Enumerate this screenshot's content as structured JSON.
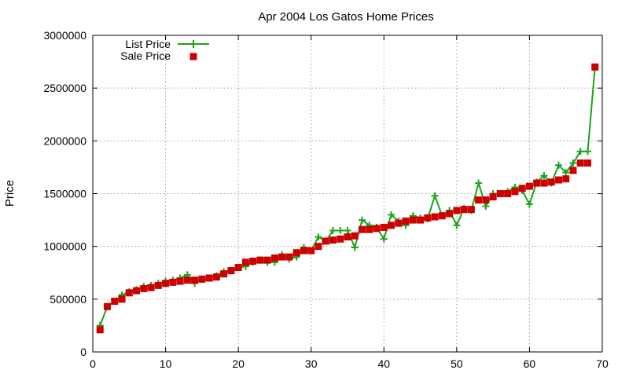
{
  "chart_data": {
    "type": "line",
    "title": "Apr 2004 Los Gatos Home Prices",
    "xlabel": "",
    "ylabel": "Price",
    "xlim": [
      0,
      70
    ],
    "ylim": [
      0,
      3000000
    ],
    "x_ticks": [
      0,
      10,
      20,
      30,
      40,
      50,
      60,
      70
    ],
    "y_ticks": [
      0,
      500000,
      1000000,
      1500000,
      2000000,
      2500000,
      3000000
    ],
    "x_tick_labels": [
      "0",
      "10",
      "20",
      "30",
      "40",
      "50",
      "60",
      "70"
    ],
    "y_tick_labels": [
      "0",
      "500000",
      "1000000",
      "1500000",
      "2000000",
      "2500000",
      "3000000"
    ],
    "grid": true,
    "legend_position": "top-left",
    "x": [
      1,
      2,
      3,
      4,
      5,
      6,
      7,
      8,
      9,
      10,
      11,
      12,
      13,
      14,
      15,
      16,
      17,
      18,
      19,
      20,
      21,
      22,
      23,
      24,
      25,
      26,
      27,
      28,
      29,
      30,
      31,
      32,
      33,
      34,
      35,
      36,
      37,
      38,
      39,
      40,
      41,
      42,
      43,
      44,
      45,
      46,
      47,
      48,
      49,
      50,
      51,
      52,
      53,
      54,
      55,
      56,
      57,
      58,
      59,
      60,
      61,
      62,
      63,
      64,
      65,
      66,
      67,
      68,
      69
    ],
    "series": [
      {
        "name": "List Price",
        "style": "linespoints",
        "marker": "plus",
        "color": "#1aa41a",
        "values": [
          250000,
          430000,
          480000,
          540000,
          570000,
          590000,
          620000,
          630000,
          650000,
          670000,
          680000,
          700000,
          730000,
          650000,
          690000,
          700000,
          720000,
          760000,
          770000,
          800000,
          810000,
          850000,
          870000,
          850000,
          850000,
          920000,
          880000,
          900000,
          990000,
          960000,
          1090000,
          1050000,
          1150000,
          1150000,
          1150000,
          990000,
          1250000,
          1200000,
          1180000,
          1070000,
          1300000,
          1240000,
          1200000,
          1290000,
          1270000,
          1260000,
          1480000,
          1290000,
          1340000,
          1200000,
          1360000,
          1340000,
          1600000,
          1380000,
          1500000,
          1500000,
          1520000,
          1560000,
          1530000,
          1400000,
          1610000,
          1670000,
          1600000,
          1770000,
          1700000,
          1790000,
          1900000,
          1900000,
          2700000
        ]
      },
      {
        "name": "Sale Price",
        "style": "points",
        "marker": "square",
        "color": "#cc0000",
        "values": [
          210000,
          430000,
          480000,
          500000,
          560000,
          580000,
          600000,
          610000,
          630000,
          650000,
          660000,
          670000,
          680000,
          680000,
          690000,
          700000,
          710000,
          740000,
          770000,
          800000,
          850000,
          860000,
          870000,
          870000,
          890000,
          900000,
          900000,
          940000,
          960000,
          960000,
          1000000,
          1050000,
          1060000,
          1070000,
          1090000,
          1100000,
          1160000,
          1160000,
          1170000,
          1180000,
          1200000,
          1220000,
          1240000,
          1250000,
          1250000,
          1270000,
          1280000,
          1290000,
          1310000,
          1340000,
          1350000,
          1350000,
          1440000,
          1440000,
          1470000,
          1500000,
          1500000,
          1520000,
          1550000,
          1570000,
          1600000,
          1600000,
          1610000,
          1630000,
          1640000,
          1720000,
          1790000,
          1790000,
          2700000
        ]
      }
    ]
  }
}
